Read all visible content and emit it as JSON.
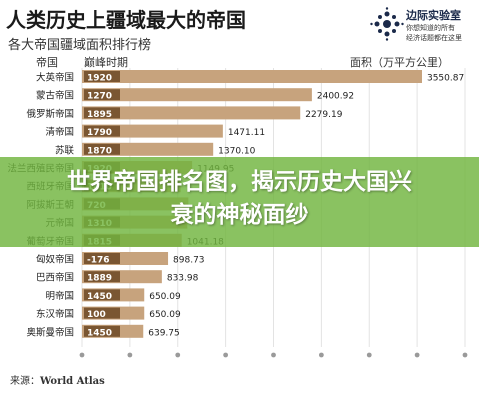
{
  "title": "人类历史上疆域最大的帝国",
  "subtitle": "各大帝国疆域面积排行榜",
  "logo": {
    "name": "边际实验室",
    "tagline1": "你想知道的所有",
    "tagline2": "经济话题都在这里"
  },
  "columns": {
    "empire": "帝国",
    "peak": "巅峰时期",
    "area": "面积（万平方公里）"
  },
  "source": {
    "prefix": "来源：",
    "name": "World Atlas"
  },
  "banner": {
    "line1": "世界帝国排名图，揭示历史大国兴",
    "line2": "衰的神秘面纱"
  },
  "colors": {
    "bar": "#c7a37d",
    "peak_box": "#7a5632",
    "grid": "#e3e3e3",
    "banner": "#70b43e"
  },
  "chart_data": {
    "type": "bar",
    "orientation": "horizontal",
    "title": "人类历史上疆域最大的帝国",
    "subtitle": "各大帝国疆域面积排行榜",
    "ylabel": "面积（万平方公里）",
    "categories": [
      "大英帝国",
      "蒙古帝国",
      "俄罗斯帝国",
      "清帝国",
      "苏联",
      "法兰西殖民帝国",
      "西班牙帝国",
      "阿拔斯王朝",
      "元帝国",
      "葡萄牙帝国",
      "匈奴帝国",
      "巴西帝国",
      "明帝国",
      "东汉帝国",
      "奥斯曼帝国"
    ],
    "peak_years": [
      "1920",
      "1270",
      "1895",
      "1790",
      "1870",
      "1920",
      "1810",
      "720",
      "1310",
      "1815",
      "-176",
      "1889",
      "1450",
      "100",
      "1450"
    ],
    "values": [
      3550.87,
      2400.92,
      2279.19,
      1471.11,
      1370.1,
      1149.95,
      1030.0,
      1111.0,
      1100.0,
      1041.18,
      898.73,
      833.98,
      650.09,
      650.09,
      639.75
    ],
    "value_labels": [
      "3550.87",
      "2400.92",
      "2279.19",
      "1471.11",
      "1370.10",
      "1149.95",
      "",
      "",
      "",
      "1041.18",
      "898.73",
      "833.98",
      "650.09",
      "650.09",
      "639.75"
    ],
    "xlim": [
      0,
      4000
    ],
    "grid": true,
    "legend": "none"
  }
}
